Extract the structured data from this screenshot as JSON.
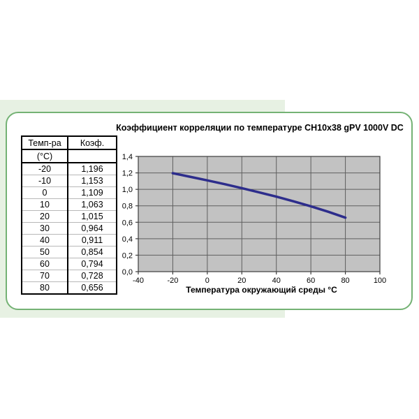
{
  "table": {
    "col_headers": [
      "Темп-ра",
      "Коэф."
    ],
    "unit_row": [
      "(°C)",
      ""
    ],
    "rows": [
      [
        "-20",
        "1,196"
      ],
      [
        "-10",
        "1,153"
      ],
      [
        "0",
        "1,109"
      ],
      [
        "10",
        "1,063"
      ],
      [
        "20",
        "1,015"
      ],
      [
        "30",
        "0,964"
      ],
      [
        "40",
        "0,911"
      ],
      [
        "50",
        "0,854"
      ],
      [
        "60",
        "0,794"
      ],
      [
        "70",
        "0,728"
      ],
      [
        "80",
        "0,656"
      ]
    ]
  },
  "chart_data": {
    "type": "line",
    "title": "Коэффициент корреляции по температуре CH10x38 gPV 1000V DC",
    "xlabel": "Температура окружающий среды °C",
    "ylabel": "",
    "x": [
      -20,
      -10,
      0,
      10,
      20,
      30,
      40,
      50,
      60,
      70,
      80
    ],
    "y": [
      1.196,
      1.153,
      1.109,
      1.063,
      1.015,
      0.964,
      0.911,
      0.854,
      0.794,
      0.728,
      0.656
    ],
    "xlim": [
      -40,
      100
    ],
    "ylim": [
      0,
      1.4
    ],
    "x_ticks": [
      -40,
      -20,
      0,
      20,
      40,
      60,
      80,
      100
    ],
    "x_tick_labels": [
      "-40",
      "-20",
      "0",
      "20",
      "40",
      "60",
      "80",
      "100"
    ],
    "y_ticks": [
      0,
      0.2,
      0.4,
      0.6,
      0.8,
      1.0,
      1.2,
      1.4
    ],
    "y_tick_labels": [
      "0,0",
      "0,2",
      "0,4",
      "0,6",
      "0,8",
      "1,0",
      "1,2",
      "1,4"
    ],
    "grid": true,
    "legend": "none"
  },
  "colors": {
    "green_band": "#e7f1e3",
    "panel_border": "#74b274",
    "plot_bg": "#c2c2c2",
    "grid": "#5f5f5f",
    "plot_border": "#3c3c3c",
    "line": "#2d2d8c",
    "text": "#000000",
    "table_border": "#000000",
    "row_divider": "#b8b8b8"
  }
}
